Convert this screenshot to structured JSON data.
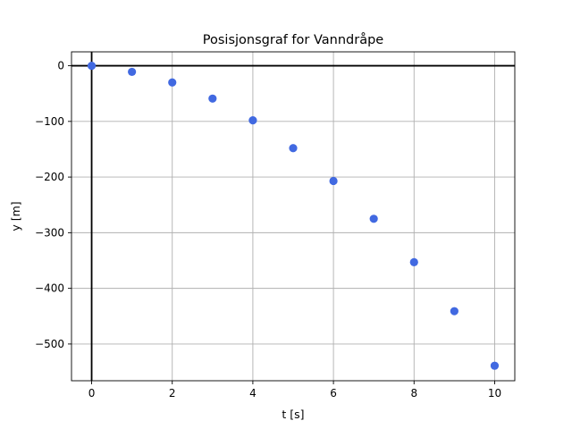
{
  "chart_data": {
    "type": "scatter",
    "title": "Posisjonsgraf for Vanndråpe",
    "xlabel": "t [s]",
    "ylabel": "y [m]",
    "xlim": [
      -0.5,
      10.5
    ],
    "ylim": [
      -566,
      25
    ],
    "x_ticks": [
      0,
      2,
      4,
      6,
      8,
      10
    ],
    "x_tick_labels": [
      "0",
      "2",
      "4",
      "6",
      "8",
      "10"
    ],
    "y_ticks": [
      0,
      -100,
      -200,
      -300,
      -400,
      -500
    ],
    "y_tick_labels": [
      "0",
      "−100",
      "−200",
      "−300",
      "−400",
      "−500"
    ],
    "grid": true,
    "zero_lines": true,
    "series": [
      {
        "color": "#4169e1",
        "x": [
          0,
          1,
          2,
          3,
          4,
          5,
          6,
          7,
          8,
          9,
          10
        ],
        "y": [
          0,
          -11,
          -30,
          -59,
          -98,
          -148,
          -207,
          -275,
          -353,
          -441,
          -539
        ]
      }
    ]
  }
}
